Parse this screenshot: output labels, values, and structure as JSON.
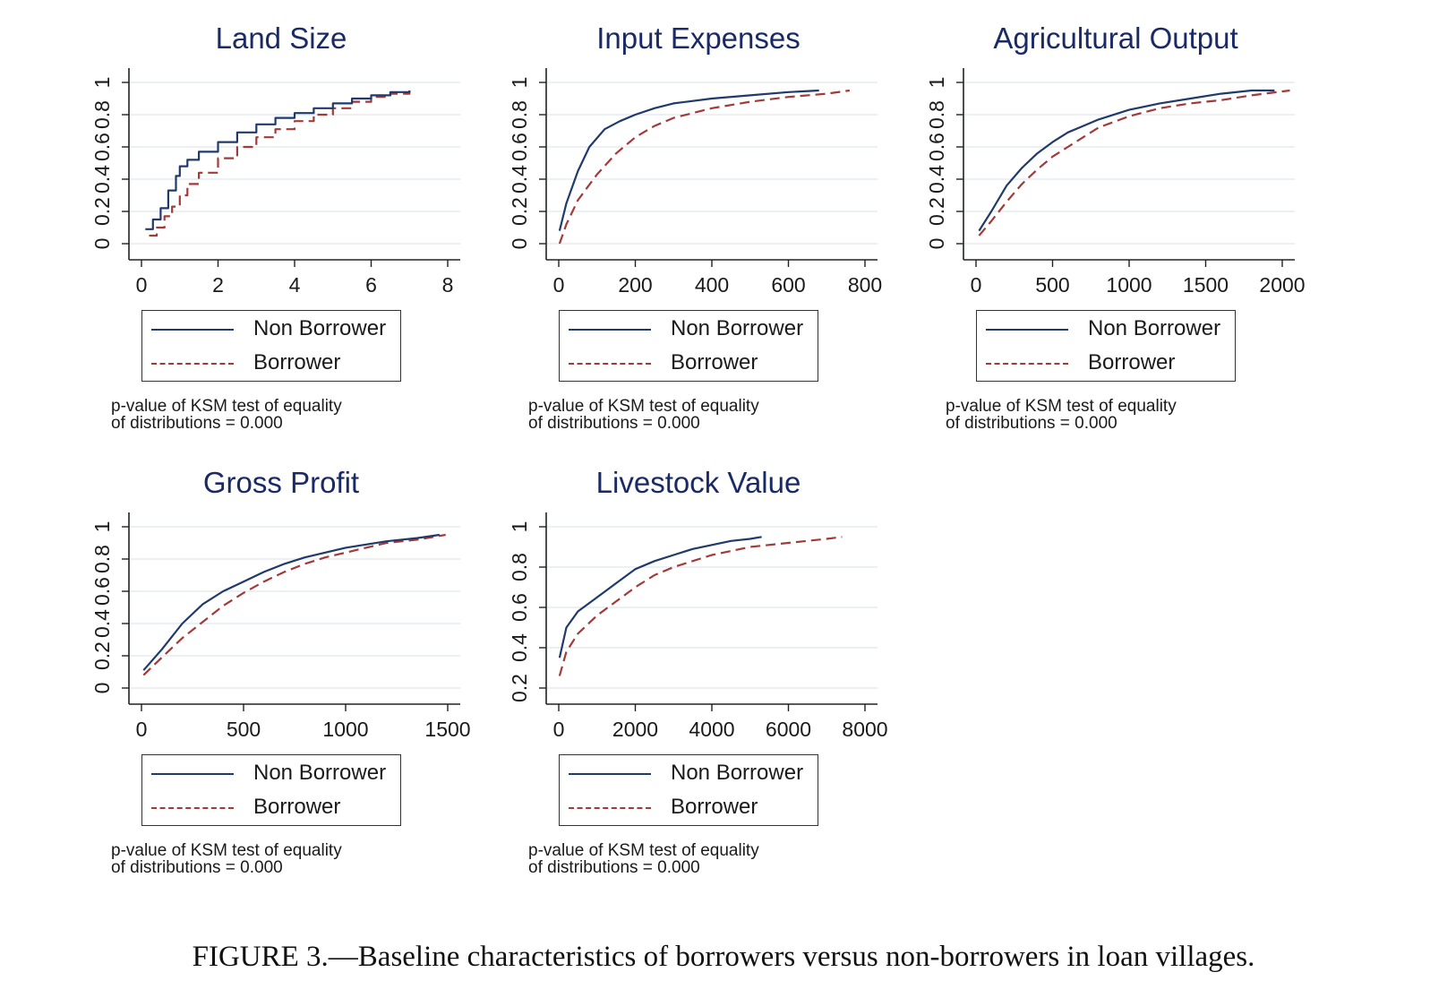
{
  "chart_data": [
    {
      "type": "line",
      "title": "Land Size",
      "xlim": [
        0,
        8
      ],
      "ylim": [
        0,
        1
      ],
      "xticks": [
        "0",
        "2",
        "4",
        "6",
        "8"
      ],
      "yticks": [
        "0",
        "0.2",
        "0.4",
        "0.6",
        "0.8",
        "1"
      ],
      "grid": true,
      "step": true,
      "legend": [
        "Non Borrower",
        "Borrower"
      ],
      "note_lines": [
        "p-value of KSM test of equality",
        "of distributions = 0.000"
      ],
      "series": [
        {
          "name": "Non Borrower",
          "x": [
            0.1,
            0.3,
            0.5,
            0.7,
            0.9,
            1.0,
            1.2,
            1.5,
            2.0,
            2.5,
            3.0,
            3.5,
            4.0,
            4.5,
            5.0,
            5.5,
            6.0,
            6.5,
            7.0
          ],
          "y": [
            0.09,
            0.15,
            0.22,
            0.33,
            0.42,
            0.48,
            0.52,
            0.57,
            0.63,
            0.69,
            0.74,
            0.78,
            0.81,
            0.84,
            0.87,
            0.9,
            0.92,
            0.94,
            0.95
          ]
        },
        {
          "name": "Borrower",
          "x": [
            0.2,
            0.4,
            0.6,
            0.8,
            1.0,
            1.2,
            1.5,
            2.0,
            2.5,
            3.0,
            3.5,
            4.0,
            4.5,
            5.0,
            5.5,
            6.0,
            6.5,
            7.0
          ],
          "y": [
            0.05,
            0.1,
            0.17,
            0.23,
            0.3,
            0.37,
            0.44,
            0.53,
            0.6,
            0.66,
            0.71,
            0.76,
            0.8,
            0.84,
            0.88,
            0.91,
            0.93,
            0.95
          ]
        }
      ]
    },
    {
      "type": "line",
      "title": "Input Expenses",
      "xlim": [
        0,
        800
      ],
      "ylim": [
        0,
        1
      ],
      "xticks": [
        "0",
        "200",
        "400",
        "600",
        "800"
      ],
      "yticks": [
        "0",
        "0.2",
        "0.4",
        "0.6",
        "0.8",
        "1"
      ],
      "grid": true,
      "legend": [
        "Non Borrower",
        "Borrower"
      ],
      "note_lines": [
        "p-value of KSM test of equality",
        "of distributions = 0.000"
      ],
      "series": [
        {
          "name": "Non Borrower",
          "x": [
            2,
            20,
            50,
            80,
            120,
            160,
            200,
            250,
            300,
            400,
            500,
            600,
            680
          ],
          "y": [
            0.08,
            0.25,
            0.45,
            0.6,
            0.71,
            0.76,
            0.8,
            0.84,
            0.87,
            0.9,
            0.92,
            0.94,
            0.95
          ]
        },
        {
          "name": "Borrower",
          "x": [
            2,
            20,
            50,
            100,
            150,
            200,
            250,
            300,
            400,
            500,
            600,
            700,
            760
          ],
          "y": [
            0.0,
            0.12,
            0.27,
            0.43,
            0.56,
            0.66,
            0.73,
            0.78,
            0.84,
            0.88,
            0.91,
            0.93,
            0.95
          ]
        }
      ]
    },
    {
      "type": "line",
      "title": "Agricultural Output",
      "xlim": [
        0,
        2000
      ],
      "ylim": [
        0,
        1
      ],
      "xticks": [
        "0",
        "500",
        "1000",
        "1500",
        "2000"
      ],
      "yticks": [
        "0",
        "0.2",
        "0.4",
        "0.6",
        "0.8",
        "1"
      ],
      "grid": true,
      "legend": [
        "Non Borrower",
        "Borrower"
      ],
      "note_lines": [
        "p-value of KSM test of equality",
        "of distributions = 0.000"
      ],
      "series": [
        {
          "name": "Non Borrower",
          "x": [
            20,
            100,
            200,
            300,
            400,
            500,
            600,
            700,
            800,
            1000,
            1200,
            1400,
            1600,
            1800,
            1950
          ],
          "y": [
            0.08,
            0.2,
            0.36,
            0.47,
            0.56,
            0.63,
            0.69,
            0.73,
            0.77,
            0.83,
            0.87,
            0.9,
            0.93,
            0.95,
            0.95
          ]
        },
        {
          "name": "Borrower",
          "x": [
            20,
            100,
            200,
            300,
            400,
            500,
            600,
            700,
            800,
            1000,
            1200,
            1400,
            1600,
            1800,
            2050
          ],
          "y": [
            0.05,
            0.14,
            0.26,
            0.37,
            0.46,
            0.54,
            0.6,
            0.66,
            0.72,
            0.79,
            0.84,
            0.87,
            0.89,
            0.92,
            0.95
          ]
        }
      ]
    },
    {
      "type": "line",
      "title": "Gross Profit",
      "xlim": [
        0,
        1500
      ],
      "ylim": [
        0,
        1
      ],
      "xticks": [
        "0",
        "500",
        "1000",
        "1500"
      ],
      "yticks": [
        "0",
        "0.2",
        "0.4",
        "0.6",
        "0.8",
        "1"
      ],
      "grid": true,
      "legend": [
        "Non Borrower",
        "Borrower"
      ],
      "note_lines": [
        "p-value of KSM test of equality",
        "of distributions = 0.000"
      ],
      "series": [
        {
          "name": "Non Borrower",
          "x": [
            10,
            100,
            200,
            300,
            400,
            500,
            600,
            700,
            800,
            900,
            1000,
            1100,
            1200,
            1350,
            1460
          ],
          "y": [
            0.11,
            0.24,
            0.4,
            0.52,
            0.6,
            0.66,
            0.72,
            0.77,
            0.81,
            0.84,
            0.87,
            0.89,
            0.91,
            0.93,
            0.95
          ]
        },
        {
          "name": "Borrower",
          "x": [
            10,
            100,
            200,
            300,
            400,
            500,
            600,
            700,
            800,
            900,
            1000,
            1100,
            1200,
            1350,
            1490
          ],
          "y": [
            0.08,
            0.19,
            0.31,
            0.41,
            0.51,
            0.59,
            0.66,
            0.72,
            0.77,
            0.81,
            0.84,
            0.87,
            0.9,
            0.92,
            0.95
          ]
        }
      ]
    },
    {
      "type": "line",
      "title": "Livestock Value",
      "xlim": [
        0,
        8000
      ],
      "ylim": [
        0.2,
        1
      ],
      "xticks": [
        "0",
        "2000",
        "4000",
        "6000",
        "8000"
      ],
      "yticks": [
        "0.2",
        "0.4",
        "0.6",
        "0.8",
        "1"
      ],
      "grid": true,
      "legend": [
        "Non Borrower",
        "Borrower"
      ],
      "note_lines": [
        "p-value of KSM test of equality",
        "of distributions = 0.000"
      ],
      "series": [
        {
          "name": "Non Borrower",
          "x": [
            20,
            200,
            500,
            1000,
            1500,
            2000,
            2500,
            3000,
            3500,
            4000,
            4500,
            5000,
            5300
          ],
          "y": [
            0.35,
            0.5,
            0.58,
            0.65,
            0.72,
            0.79,
            0.83,
            0.86,
            0.89,
            0.91,
            0.93,
            0.94,
            0.95
          ]
        },
        {
          "name": "Borrower",
          "x": [
            20,
            200,
            500,
            1000,
            1500,
            2000,
            2500,
            3000,
            4000,
            5000,
            6000,
            7000,
            7400
          ],
          "y": [
            0.26,
            0.38,
            0.47,
            0.56,
            0.63,
            0.7,
            0.76,
            0.8,
            0.86,
            0.9,
            0.92,
            0.94,
            0.95
          ]
        }
      ]
    }
  ],
  "caption": "FIGURE 3.—Baseline characteristics of borrowers versus non-borrowers in loan villages.",
  "colors": {
    "non_borrower": "#1f3a6b",
    "borrower": "#a23a3a",
    "title": "#1a2a66",
    "grid": "#e4ebf0"
  }
}
